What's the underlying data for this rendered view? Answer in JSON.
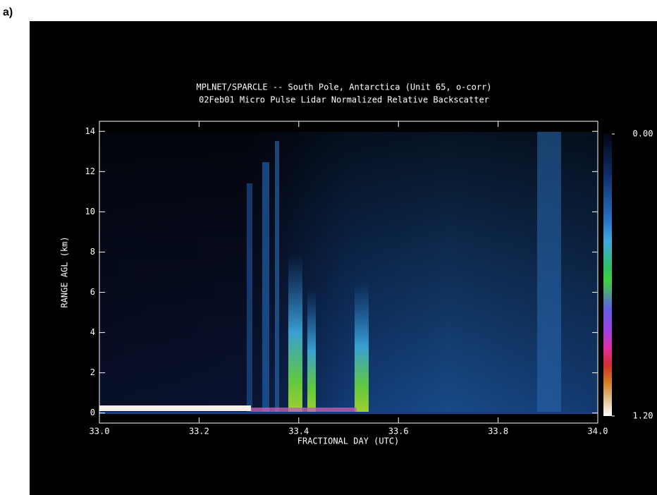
{
  "panel_label": "a)",
  "chart_data": {
    "type": "heatmap",
    "title": "MPLNET/SPARCLE -- South Pole, Antarctica (Unit 65, o-corr)",
    "subtitle": "02Feb01 Micro Pulse Lidar Normalized Relative Backscatter",
    "x_label": "FRACTIONAL DAY (UTC)",
    "y_label": "RANGE AGL (km)",
    "xlim": [
      33,
      34
    ],
    "xticks": [
      {
        "value": 33,
        "label": "33.0"
      },
      33.2,
      33.4,
      33.6,
      33.8,
      {
        "value": 34,
        "label": "34.0"
      }
    ],
    "ylim": [
      -0.5,
      14.5
    ],
    "yticks": [
      0,
      2,
      4,
      6,
      8,
      10,
      12,
      14
    ],
    "colorbar": {
      "clim": [
        0,
        1.2
      ],
      "ticks": [
        {
          "value": 0,
          "label": "0.00"
        },
        {
          "value": 1.2,
          "label": "1.20"
        }
      ]
    }
  }
}
